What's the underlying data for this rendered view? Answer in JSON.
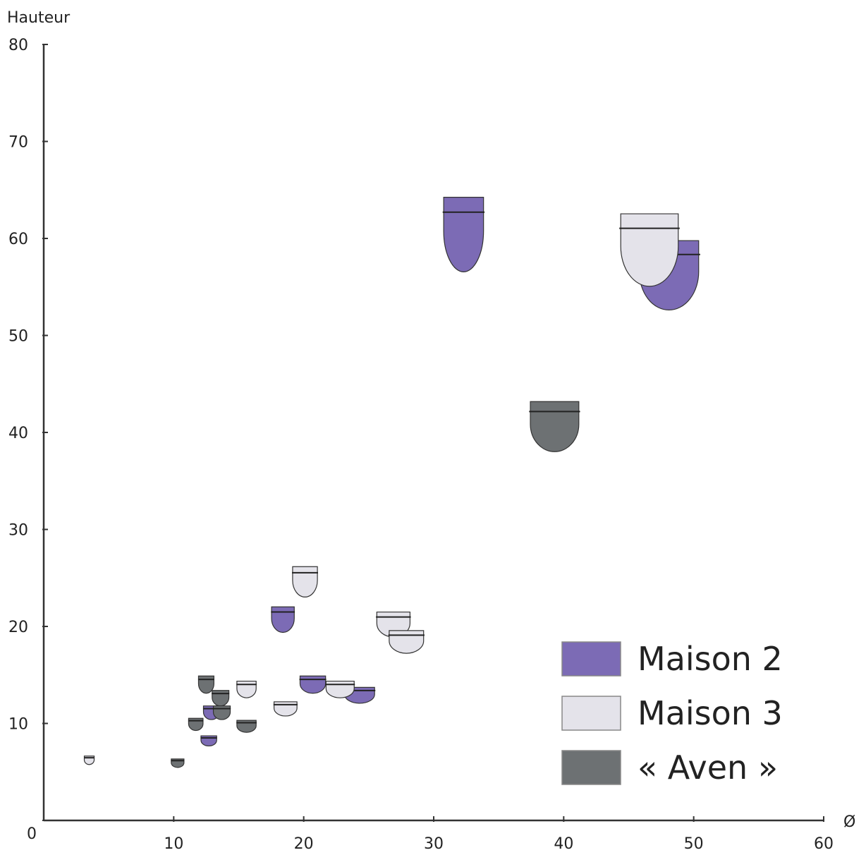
{
  "chart_data": {
    "type": "scatter",
    "y_label": "Hauteur",
    "x_label": "Ø",
    "xlim": [
      0,
      60
    ],
    "ylim": [
      0,
      80
    ],
    "xticks": [
      10,
      20,
      30,
      40,
      50,
      60
    ],
    "yticks": [
      0,
      10,
      20,
      30,
      40,
      50,
      60,
      70,
      80
    ],
    "legend": "bottom-right",
    "series": [
      {
        "name": "Maison 2",
        "color": "#7c6bb5",
        "x": [
          32.3,
          48.1,
          18.4,
          20.7,
          24.3,
          12.9,
          12.7
        ],
        "values": [
          60.4,
          56.2,
          20.7,
          14.0,
          12.9,
          11.1,
          8.2
        ]
      },
      {
        "name": "Maison 3",
        "color": "#e4e3ea",
        "x": [
          46.6,
          20.1,
          26.9,
          27.9,
          22.8,
          15.6,
          18.6,
          3.5
        ],
        "values": [
          58.8,
          24.6,
          20.2,
          18.4,
          13.5,
          13.5,
          11.5,
          6.2
        ]
      },
      {
        "name": "« Aven »",
        "color": "#6d7173",
        "x": [
          39.3,
          12.5,
          13.6,
          13.7,
          11.7,
          15.6,
          10.3
        ],
        "values": [
          40.6,
          14.0,
          12.6,
          11.1,
          9.9,
          9.7,
          5.9
        ]
      }
    ]
  }
}
